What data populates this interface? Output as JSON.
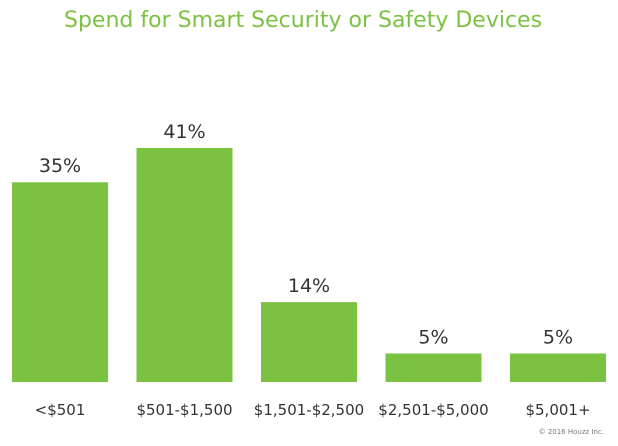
{
  "chart_data": {
    "type": "bar",
    "title": "Spend for Smart Security or Safety Devices",
    "categories": [
      "<$501",
      "$501-$1,500",
      "$1,501-$2,500",
      "$2,501-$5,000",
      "$5,001+"
    ],
    "values": [
      35,
      41,
      14,
      5,
      5
    ],
    "value_labels": [
      "35%",
      "41%",
      "14%",
      "5%",
      "5%"
    ],
    "unit": "%",
    "xlabel": "",
    "ylabel": "",
    "ylim": [
      0,
      41
    ],
    "grid": false,
    "legend": "none",
    "colors": {
      "bar": "#7cc242",
      "title": "#7cc242",
      "label": "#333333"
    }
  },
  "footer": {
    "copyright": "© 2016 Houzz Inc."
  }
}
